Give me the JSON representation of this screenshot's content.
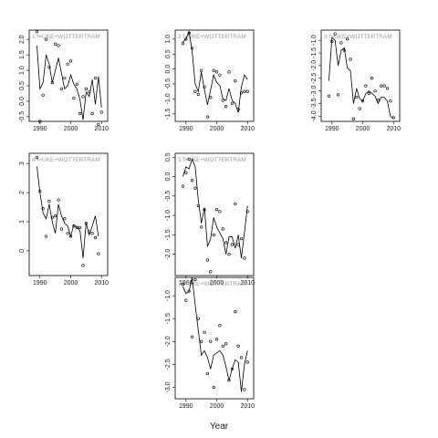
{
  "chart_data": {
    "type": "line",
    "xlabel": "Year",
    "colors": {
      "line": "#000000",
      "points": "#000000",
      "frame": "#000000",
      "label": "#9a9a9a"
    },
    "x_ticks": [
      1990,
      2000,
      2010
    ],
    "panels": [
      {
        "label": "1  f=UKE+WOTTERTRAM",
        "xlim": [
          1986.5,
          2012
        ],
        "ylim": [
          -0.65,
          2.3
        ],
        "y_ticks": [
          -0.5,
          0.0,
          0.5,
          1.0,
          1.5,
          2.0
        ],
        "y_tick_labels": [
          "-0.5",
          "0.0",
          "0.5",
          "1.0",
          "1.5",
          "2.0"
        ],
        "line_x": [
          1989,
          1990,
          1991,
          1992,
          1993,
          1994,
          1995,
          1996,
          1997,
          1998,
          1999,
          2000,
          2001,
          2002,
          2003,
          2004,
          2005,
          2006,
          2007,
          2008,
          2009,
          2010
        ],
        "line_y": [
          1.8,
          0.4,
          0.6,
          1.5,
          1.2,
          0.6,
          1.0,
          1.4,
          0.9,
          0.4,
          0.5,
          0.85,
          0.55,
          0.4,
          0.05,
          -0.6,
          0.3,
          0.15,
          0.7,
          -0.1,
          0.8,
          -0.2
        ],
        "points_x": [
          1989,
          1990,
          1991,
          1992,
          1993,
          1994,
          1995,
          1996,
          1997,
          1998,
          1999,
          2000,
          2001,
          2002,
          2003,
          2004,
          2005,
          2006,
          2007,
          2008,
          2009,
          2010
        ],
        "points_y": [
          2.25,
          -0.65,
          0.2,
          2.0,
          1.1,
          0.6,
          1.85,
          1.8,
          0.4,
          0.75,
          1.2,
          1.3,
          0.1,
          0.55,
          -0.4,
          0.15,
          0.4,
          0.3,
          -0.4,
          0.75,
          -0.75,
          -0.35
        ]
      },
      {
        "label": "2  f=UKE+WOTTERTRAM",
        "xlim": [
          1986.5,
          2012
        ],
        "ylim": [
          -1.75,
          1.3
        ],
        "y_ticks": [
          -1.5,
          -1.0,
          -0.5,
          0.0,
          0.5,
          1.0
        ],
        "y_tick_labels": [
          "-1.5",
          "-1.0",
          "-0.5",
          "0.0",
          "0.5",
          "1.0"
        ],
        "line_x": [
          1989,
          1990,
          1991,
          1992,
          1993,
          1994,
          1995,
          1996,
          1997,
          1998,
          1999,
          2000,
          2001,
          2002,
          2003,
          2004,
          2005,
          2006,
          2007,
          2008,
          2009,
          2010
        ],
        "line_y": [
          0.9,
          1.0,
          1.25,
          0.6,
          -0.5,
          -0.75,
          -0.1,
          -0.7,
          -1.2,
          -0.7,
          -0.2,
          -0.45,
          -0.55,
          -1.0,
          -1.05,
          -0.65,
          -1.05,
          -1.15,
          -1.45,
          -0.6,
          -0.2,
          -0.35
        ],
        "points_x": [
          1989,
          1990,
          1991,
          1992,
          1993,
          1994,
          1995,
          1996,
          1997,
          1998,
          1999,
          2000,
          2001,
          2002,
          2003,
          2004,
          2005,
          2006,
          2007,
          2008,
          2009,
          2010
        ],
        "points_y": [
          0.85,
          1.0,
          1.2,
          0.7,
          -0.75,
          -0.85,
          -0.05,
          -0.6,
          -1.6,
          -0.95,
          -0.05,
          -0.1,
          -0.2,
          -1.05,
          -1.25,
          -0.1,
          -1.15,
          -0.4,
          -1.35,
          -0.8,
          -0.75,
          -0.75
        ]
      },
      {
        "label": "3  f=UKE+WOTTERTRAM",
        "xlim": [
          1986.5,
          2012
        ],
        "ylim": [
          -4.2,
          -0.6
        ],
        "y_ticks": [
          -4.0,
          -3.5,
          -3.0,
          -2.5,
          -2.0,
          -1.5,
          -1.0
        ],
        "y_tick_labels": [
          "-4.0",
          "-3.5",
          "-3.0",
          "-2.5",
          "-2.0",
          "-1.5",
          "-1.0"
        ],
        "line_x": [
          1989,
          1990,
          1991,
          1992,
          1993,
          1994,
          1995,
          1996,
          1997,
          1998,
          1999,
          2000,
          2001,
          2002,
          2003,
          2004,
          2005,
          2006,
          2007,
          2008,
          2009,
          2010
        ],
        "line_y": [
          -2.6,
          -0.9,
          -1.0,
          -2.0,
          -1.4,
          -1.3,
          -2.1,
          -2.2,
          -3.5,
          -2.9,
          -3.3,
          -3.4,
          -3.1,
          -3.0,
          -3.1,
          -3.2,
          -3.5,
          -3.25,
          -3.25,
          -3.4,
          -4.0,
          -4.1
        ],
        "points_x": [
          1989,
          1990,
          1991,
          1992,
          1993,
          1994,
          1995,
          1996,
          1997,
          1998,
          1999,
          2000,
          2001,
          2002,
          2003,
          2004,
          2005,
          2006,
          2007,
          2008,
          2009,
          2010
        ],
        "points_y": [
          -3.2,
          -1.05,
          -0.75,
          -3.15,
          -1.1,
          -1.4,
          -0.95,
          -1.75,
          -4.1,
          -3.25,
          -3.7,
          -3.4,
          -2.8,
          -3.1,
          -2.5,
          -3.0,
          -3.35,
          -2.8,
          -2.8,
          -2.9,
          -3.4,
          -4.05
        ]
      },
      {
        "label": "4  f=UKE+WOTTERTRAM",
        "xlim": [
          1986.5,
          2012
        ],
        "ylim": [
          -0.85,
          3.35
        ],
        "y_ticks": [
          0,
          1,
          2,
          3
        ],
        "y_tick_labels": [
          "0",
          "1",
          "2",
          "3"
        ],
        "line_x": [
          1989,
          1990,
          1991,
          1992,
          1993,
          1994,
          1995,
          1996,
          1997,
          1998,
          1999,
          2000,
          2001,
          2002,
          2003,
          2004,
          2005,
          2006,
          2007,
          2008,
          2009,
          2010
        ],
        "line_y": [
          2.9,
          2.0,
          1.3,
          1.1,
          1.6,
          1.0,
          0.6,
          1.6,
          1.2,
          0.95,
          0.85,
          0.5,
          0.9,
          0.8,
          0.7,
          -0.25,
          0.95,
          0.55,
          0.85,
          1.2,
          0.5,
          null
        ],
        "points_x": [
          1989,
          1990,
          1991,
          1992,
          1993,
          1994,
          1995,
          1996,
          1997,
          1998,
          1999,
          2000,
          2001,
          2002,
          2003,
          2004,
          2005,
          2006,
          2007,
          2008,
          2009,
          2010
        ],
        "points_y": [
          3.2,
          2.05,
          1.45,
          0.5,
          1.7,
          1.15,
          1.2,
          1.75,
          0.75,
          1.1,
          0.6,
          0.5,
          0.85,
          0.8,
          0.8,
          -0.5,
          0.95,
          0.65,
          0.6,
          0.45,
          -0.1,
          null
        ]
      },
      {
        "label": "5  f=UKE+WOTTERTRAM",
        "xlim": [
          1986.5,
          2012
        ],
        "ylim": [
          -2.55,
          0.6
        ],
        "y_ticks": [
          -2.0,
          -1.5,
          -1.0,
          -0.5,
          0.0,
          0.5
        ],
        "y_tick_labels": [
          "-2.0",
          "-1.5",
          "-1.0",
          "-0.5",
          "0.0",
          "0.5"
        ],
        "line_x": [
          1989,
          1990,
          1991,
          1992,
          1993,
          1994,
          1995,
          1996,
          1997,
          1998,
          1999,
          2000,
          2001,
          2002,
          2003,
          2004,
          2005,
          2006,
          2007,
          2008,
          2009,
          2010
        ],
        "line_y": [
          0.0,
          0.25,
          0.2,
          0.45,
          0.25,
          -0.6,
          -1.2,
          -0.8,
          -1.8,
          -1.6,
          -1.05,
          -1.3,
          -1.45,
          -1.6,
          -2.0,
          -1.55,
          -1.55,
          -1.85,
          -1.5,
          -2.1,
          -1.45,
          -0.75
        ],
        "points_x": [
          1989,
          1990,
          1991,
          1992,
          1993,
          1994,
          1995,
          1996,
          1997,
          1998,
          1999,
          2000,
          2001,
          2002,
          2003,
          2004,
          2005,
          2006,
          2007,
          2008,
          2009,
          2010
        ],
        "points_y": [
          -0.25,
          0.1,
          0.45,
          -0.1,
          -0.3,
          -0.75,
          -1.3,
          -0.85,
          -2.15,
          -2.45,
          -1.5,
          -0.85,
          -0.9,
          -1.35,
          -1.7,
          -2.0,
          -1.75,
          -0.7,
          -1.75,
          -1.6,
          -2.1,
          -0.9
        ]
      },
      {
        "label": "7  f=UKE+WOTTERTRAM",
        "xlim": [
          1986.5,
          2012
        ],
        "ylim": [
          -3.25,
          -0.6
        ],
        "y_ticks": [
          -3.0,
          -2.5,
          -2.0,
          -1.5,
          -1.0
        ],
        "y_tick_labels": [
          "-3.0",
          "-2.5",
          "-2.0",
          "-1.5",
          "-1.0"
        ],
        "line_x": [
          1989,
          1990,
          1991,
          1992,
          1993,
          1994,
          1995,
          1996,
          1997,
          1998,
          1999,
          2000,
          2001,
          2002,
          2003,
          2004,
          2005,
          2006,
          2007,
          2008,
          2009,
          2010
        ],
        "line_y": [
          -0.8,
          -0.95,
          -0.9,
          -0.6,
          -1.2,
          -1.75,
          -2.3,
          -2.2,
          -2.35,
          -2.6,
          -2.3,
          -2.25,
          -2.2,
          -2.3,
          -2.55,
          -2.85,
          -2.6,
          -2.4,
          -2.45,
          -3.1,
          -2.5,
          -2.2
        ],
        "points_x": [
          1989,
          1990,
          1991,
          1992,
          1993,
          1994,
          1995,
          1996,
          1997,
          1998,
          1999,
          2000,
          2001,
          2002,
          2003,
          2004,
          2005,
          2006,
          2007,
          2008,
          2009,
          2010
        ],
        "points_y": [
          -0.75,
          -1.1,
          -0.9,
          -1.9,
          -0.65,
          -1.5,
          -2.0,
          -1.8,
          -2.7,
          -2.0,
          -3.0,
          -1.95,
          -1.65,
          -2.1,
          -2.05,
          -2.85,
          -2.6,
          -1.35,
          -2.1,
          -2.35,
          -3.05,
          -2.45
        ]
      }
    ]
  }
}
